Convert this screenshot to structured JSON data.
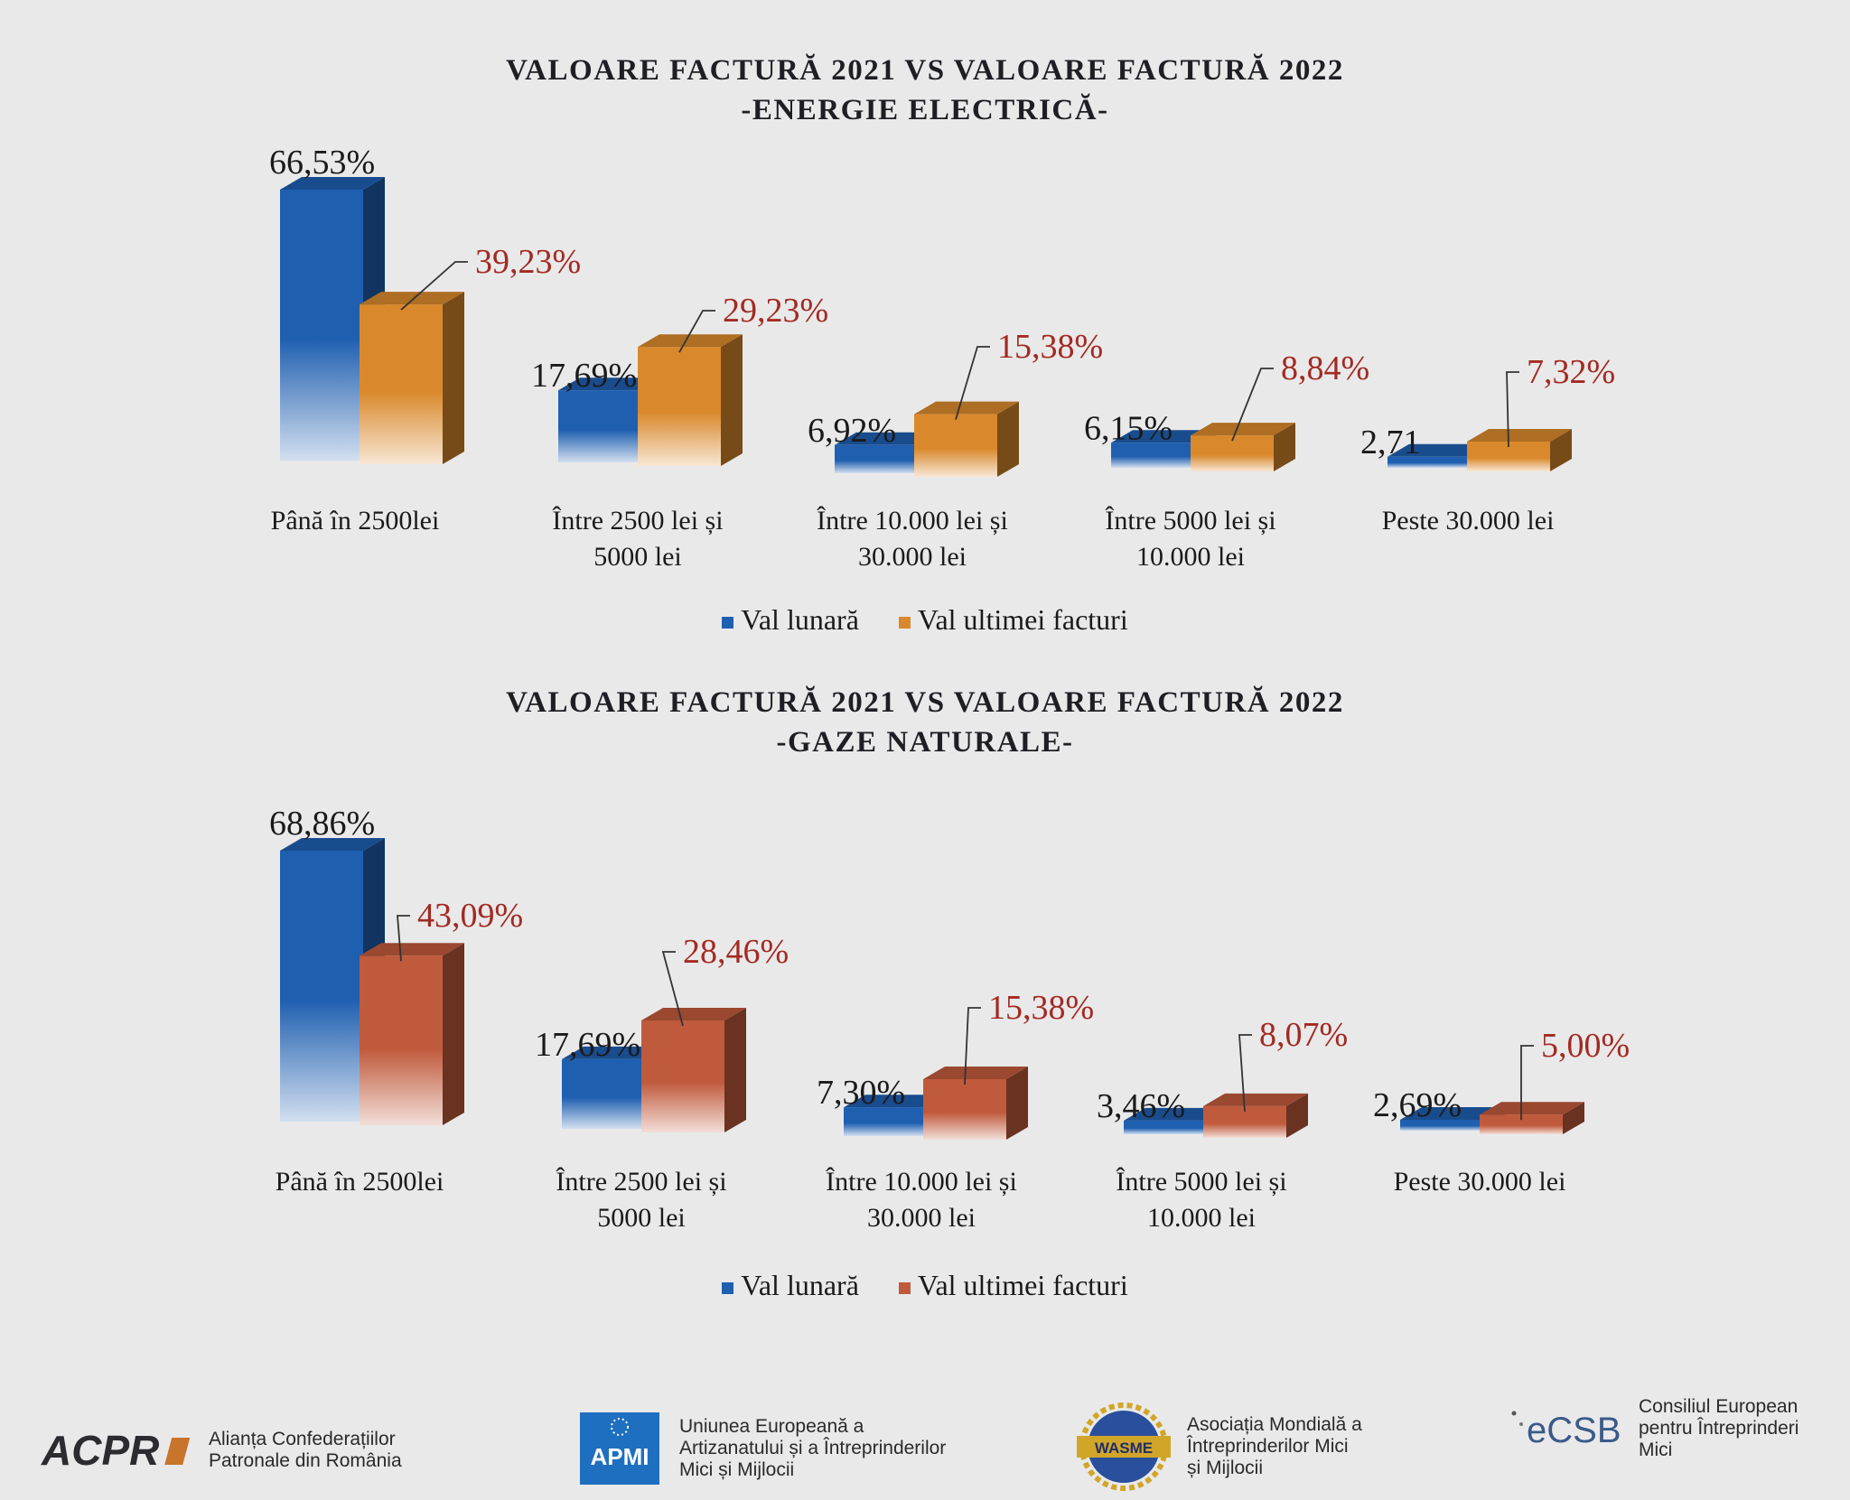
{
  "chart_data": [
    {
      "type": "bar",
      "title": "VALOARE FACTURĂ 2021 VS VALOARE FACTURĂ 2022",
      "subtitle": "-ENERGIE ELECTRICĂ-",
      "categories": [
        "Până în 2500lei",
        "Între 2500 lei și 5000 lei",
        "Între 10.000 lei și 30.000 lei",
        "Între 5000 lei și 10.000 lei",
        "Peste 30.000 lei"
      ],
      "category_lines": [
        [
          "Până în 2500lei"
        ],
        [
          "Între 2500 lei și",
          "5000 lei"
        ],
        [
          "Între 10.000 lei și",
          "30.000 lei"
        ],
        [
          "Între 5000 lei și",
          "10.000 lei"
        ],
        [
          "Peste 30.000 lei"
        ]
      ],
      "series": [
        {
          "name": "Val lunară",
          "values": [
            66.53,
            17.69,
            6.92,
            6.15,
            2.71
          ],
          "labels": [
            "66,53%",
            "17,69%",
            "6,92%",
            "6,15%",
            "2,71"
          ],
          "color": "#1f5fb0"
        },
        {
          "name": "Val ultimei facturi",
          "values": [
            39.23,
            29.23,
            15.38,
            8.84,
            7.32
          ],
          "labels": [
            "39,23%",
            "29,23%",
            "15,38%",
            "8,84%",
            "7,32%"
          ],
          "color": "#d9892c"
        }
      ],
      "legend_placement": "bottom",
      "grid": false
    },
    {
      "type": "bar",
      "title": "VALOARE FACTURĂ 2021 VS VALOARE FACTURĂ 2022",
      "subtitle": "-GAZE NATURALE-",
      "categories": [
        "Până în 2500lei",
        "Între 2500 lei și 5000 lei",
        "Între 10.000 lei și 30.000 lei",
        "Între 5000 lei și 10.000 lei",
        "Peste 30.000 lei"
      ],
      "category_lines": [
        [
          "Până în 2500lei"
        ],
        [
          "Între 2500 lei și",
          "5000 lei"
        ],
        [
          "Între 10.000 lei și",
          "30.000 lei"
        ],
        [
          "Între 5000 lei și",
          "10.000 lei"
        ],
        [
          "Peste 30.000 lei"
        ]
      ],
      "series": [
        {
          "name": "Val lunară",
          "values": [
            68.86,
            17.69,
            7.3,
            3.46,
            2.69
          ],
          "labels": [
            "68,86%",
            "17,69%",
            "7,30%",
            "3,46%",
            "2,69%"
          ],
          "color": "#1f5fb0"
        },
        {
          "name": "Val ultimei facturi",
          "values": [
            43.09,
            28.46,
            15.38,
            8.07,
            5.0
          ],
          "labels": [
            "43,09%",
            "28,46%",
            "15,38%",
            "8,07%",
            "5,00%"
          ],
          "color": "#c05a3c"
        }
      ],
      "legend_placement": "bottom",
      "grid": false
    }
  ],
  "footer": {
    "orgs": [
      {
        "logo": "ACPR",
        "lines": [
          "Alianța Confederațiilor",
          "Patronale din România"
        ]
      },
      {
        "logo": "APMI",
        "lines": [
          "Uniunea Europeană a",
          "Artizanatului și a Întreprinderilor",
          "Mici și Mijlocii"
        ]
      },
      {
        "logo": "WASME",
        "lines": [
          "Asociația Mondială a",
          "Întreprinderilor Mici",
          "și Mijlocii"
        ]
      },
      {
        "logo": "eCSB",
        "lines": [
          "Consiliul European",
          "pentru Întreprinderi",
          "Mici"
        ]
      }
    ]
  }
}
